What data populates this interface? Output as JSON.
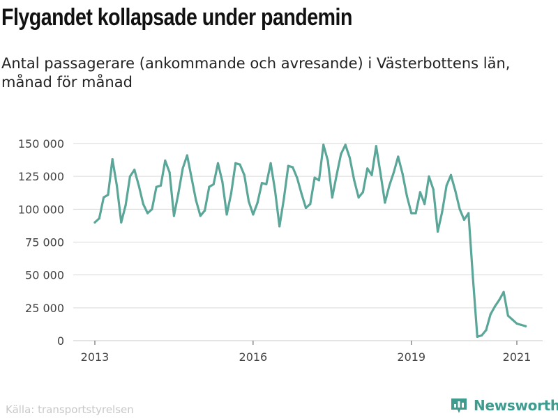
{
  "title": "Flygandet kollapsade under pandemin",
  "subtitle": "Antal passagerare (ankommande och avresande) i Västerbottens län, månad för månad",
  "source": "Källa: transportstyrelsen",
  "brand": "Newsworthy",
  "colors": {
    "line": "#5aa698",
    "brand": "#3f9b8e",
    "grid": "#d9d9d9",
    "axis": "#555555"
  },
  "chart_data": {
    "type": "line",
    "title": "Flygandet kollapsade under pandemin",
    "subtitle": "Antal passagerare (ankommande och avresande) i Västerbottens län, månad för månad",
    "xlabel": "",
    "ylabel": "",
    "x_start": "2013-01",
    "x_ticks": [
      "2013",
      "2016",
      "2019",
      "2021"
    ],
    "x_tick_values": [
      "2013-01",
      "2016-01",
      "2019-01",
      "2021-01"
    ],
    "y_ticks": [
      "0",
      "25 000",
      "50 000",
      "75 000",
      "100 000",
      "125 000",
      "150 000"
    ],
    "y_tick_values": [
      0,
      25000,
      50000,
      75000,
      100000,
      125000,
      150000
    ],
    "ylim": [
      0,
      150000
    ],
    "grid": true,
    "legend": "none",
    "series": [
      {
        "values": [
          90000,
          93000,
          109000,
          111000,
          138000,
          118000,
          90000,
          103000,
          125000,
          130000,
          118000,
          104000,
          97000,
          100000,
          117000,
          118000,
          137000,
          128000,
          95000,
          112000,
          131000,
          141000,
          124000,
          107000,
          95000,
          99000,
          117000,
          119000,
          135000,
          121000,
          96000,
          112000,
          135000,
          134000,
          126000,
          106000,
          96000,
          105000,
          120000,
          119000,
          135000,
          114000,
          87000,
          108000,
          133000,
          132000,
          124000,
          112000,
          101000,
          104000,
          124000,
          122000,
          149000,
          137000,
          109000,
          126000,
          142000,
          149000,
          139000,
          122000,
          109000,
          113000,
          131000,
          126000,
          148000,
          127000,
          105000,
          118000,
          128000,
          140000,
          127000,
          110000,
          97000,
          97000,
          113000,
          104000,
          125000,
          115000,
          83000,
          98000,
          118000,
          126000,
          114000,
          100000,
          92000,
          97000,
          48000,
          3000,
          4000,
          8000,
          20000,
          26000,
          31000,
          37000,
          19000,
          16000,
          13000,
          12000,
          11000
        ]
      }
    ]
  }
}
